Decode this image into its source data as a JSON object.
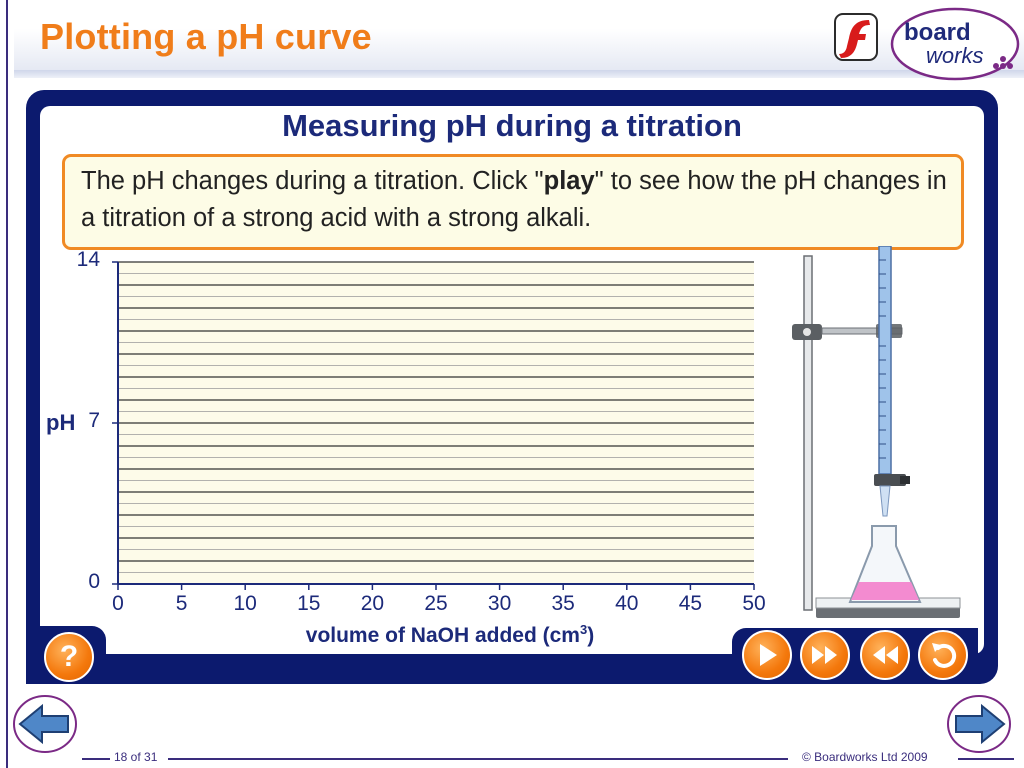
{
  "header": {
    "slide_title": "Plotting a pH curve",
    "logo_line1": "board",
    "logo_line2": "works"
  },
  "panel": {
    "title": "Measuring pH during a titration",
    "instruction_part1": "The pH changes during a titration. Click \"",
    "instruction_bold": "play",
    "instruction_part2": "\" to see how the pH changes in a titration of a strong acid with a strong alkali."
  },
  "chart_data": {
    "type": "line",
    "title": "",
    "xlabel": "volume of NaOH added (cm",
    "xlabel_sup": "3",
    "xlabel_end": ")",
    "ylabel": "pH",
    "x_ticks": [
      "0",
      "5",
      "10",
      "15",
      "20",
      "25",
      "30",
      "35",
      "40",
      "45",
      "50"
    ],
    "y_ticks": [
      "0",
      "7",
      "14"
    ],
    "xlim": [
      0,
      50
    ],
    "ylim": [
      0,
      14
    ],
    "series": [],
    "grid": true
  },
  "controls": {
    "help": "?",
    "play": "play",
    "fast_forward": "fast-forward",
    "rewind": "rewind",
    "reset": "reset"
  },
  "colors": {
    "accent": "#f07d1a",
    "frame": "#0c1a6e",
    "text_blue": "#1c2a7a",
    "liquid": "#f38bd0"
  },
  "footer": {
    "page": "18 of 31",
    "copyright": "© Boardworks Ltd 2009"
  }
}
